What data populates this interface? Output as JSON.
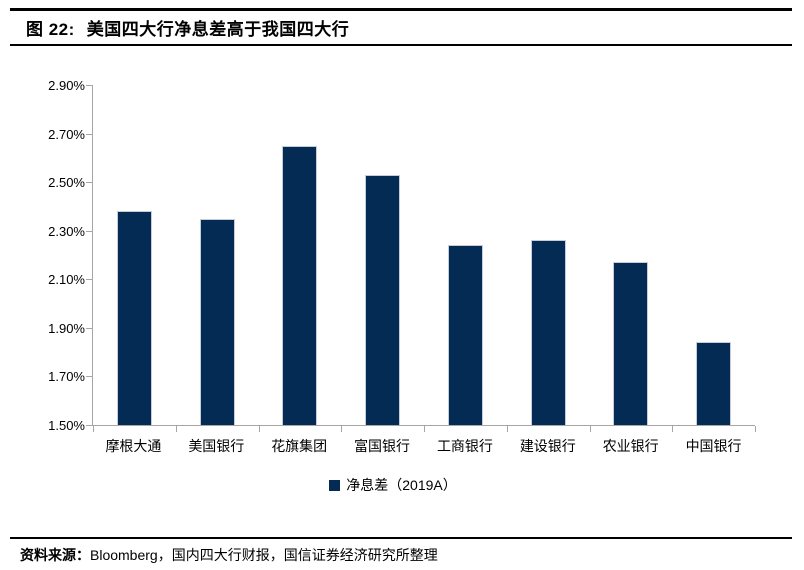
{
  "header": {
    "figure_label": "图 22:",
    "title": "美国四大行净息差高于我国四大行"
  },
  "chart_data": {
    "type": "bar",
    "title": "美国四大行净息差高于我国四大行",
    "categories": [
      "摩根大通",
      "美国银行",
      "花旗集团",
      "富国银行",
      "工商银行",
      "建设银行",
      "农业银行",
      "中国银行"
    ],
    "values": [
      2.38,
      2.35,
      2.65,
      2.53,
      2.24,
      2.26,
      2.17,
      1.84
    ],
    "unit": "%",
    "series_name": "净息差（2019A）",
    "ylim": [
      1.5,
      2.9
    ],
    "ytick_step": 0.2,
    "ytick_labels": [
      "2.90%",
      "2.70%",
      "2.50%",
      "2.30%",
      "2.10%",
      "1.90%",
      "1.70%",
      "1.50%"
    ],
    "grid": false,
    "legend_position": "bottom"
  },
  "footer": {
    "source_label": "资料来源：",
    "source_text": "Bloomberg，国内四大行财报，国信证券经济研究所整理"
  },
  "colors": {
    "bar": "#042B54",
    "bar_border": "#C7CDD8",
    "axis": "#A6A6A6",
    "rule": "#000000",
    "text": "#000000"
  }
}
